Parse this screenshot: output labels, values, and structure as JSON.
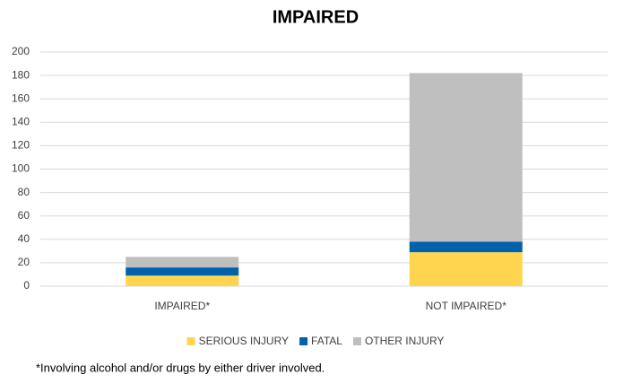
{
  "chart_data": {
    "type": "stacked_bar",
    "title": "IMPAIRED",
    "categories": [
      "IMPAIRED*",
      "NOT IMPAIRED*"
    ],
    "series": [
      {
        "name": "SERIOUS INJURY",
        "color": "#ffd54f",
        "values": [
          9,
          29
        ]
      },
      {
        "name": "FATAL",
        "color": "#0062ab",
        "values": [
          7,
          9
        ]
      },
      {
        "name": "OTHER INJURY",
        "color": "#bfbfbf",
        "values": [
          9,
          144
        ]
      }
    ],
    "ylim": [
      0,
      200
    ],
    "yticks": [
      0,
      20,
      40,
      60,
      80,
      100,
      120,
      140,
      160,
      180,
      200
    ],
    "grid": true,
    "legend": "bottom",
    "annotation": "*Involving alcohol and/or drugs by either driver involved."
  }
}
